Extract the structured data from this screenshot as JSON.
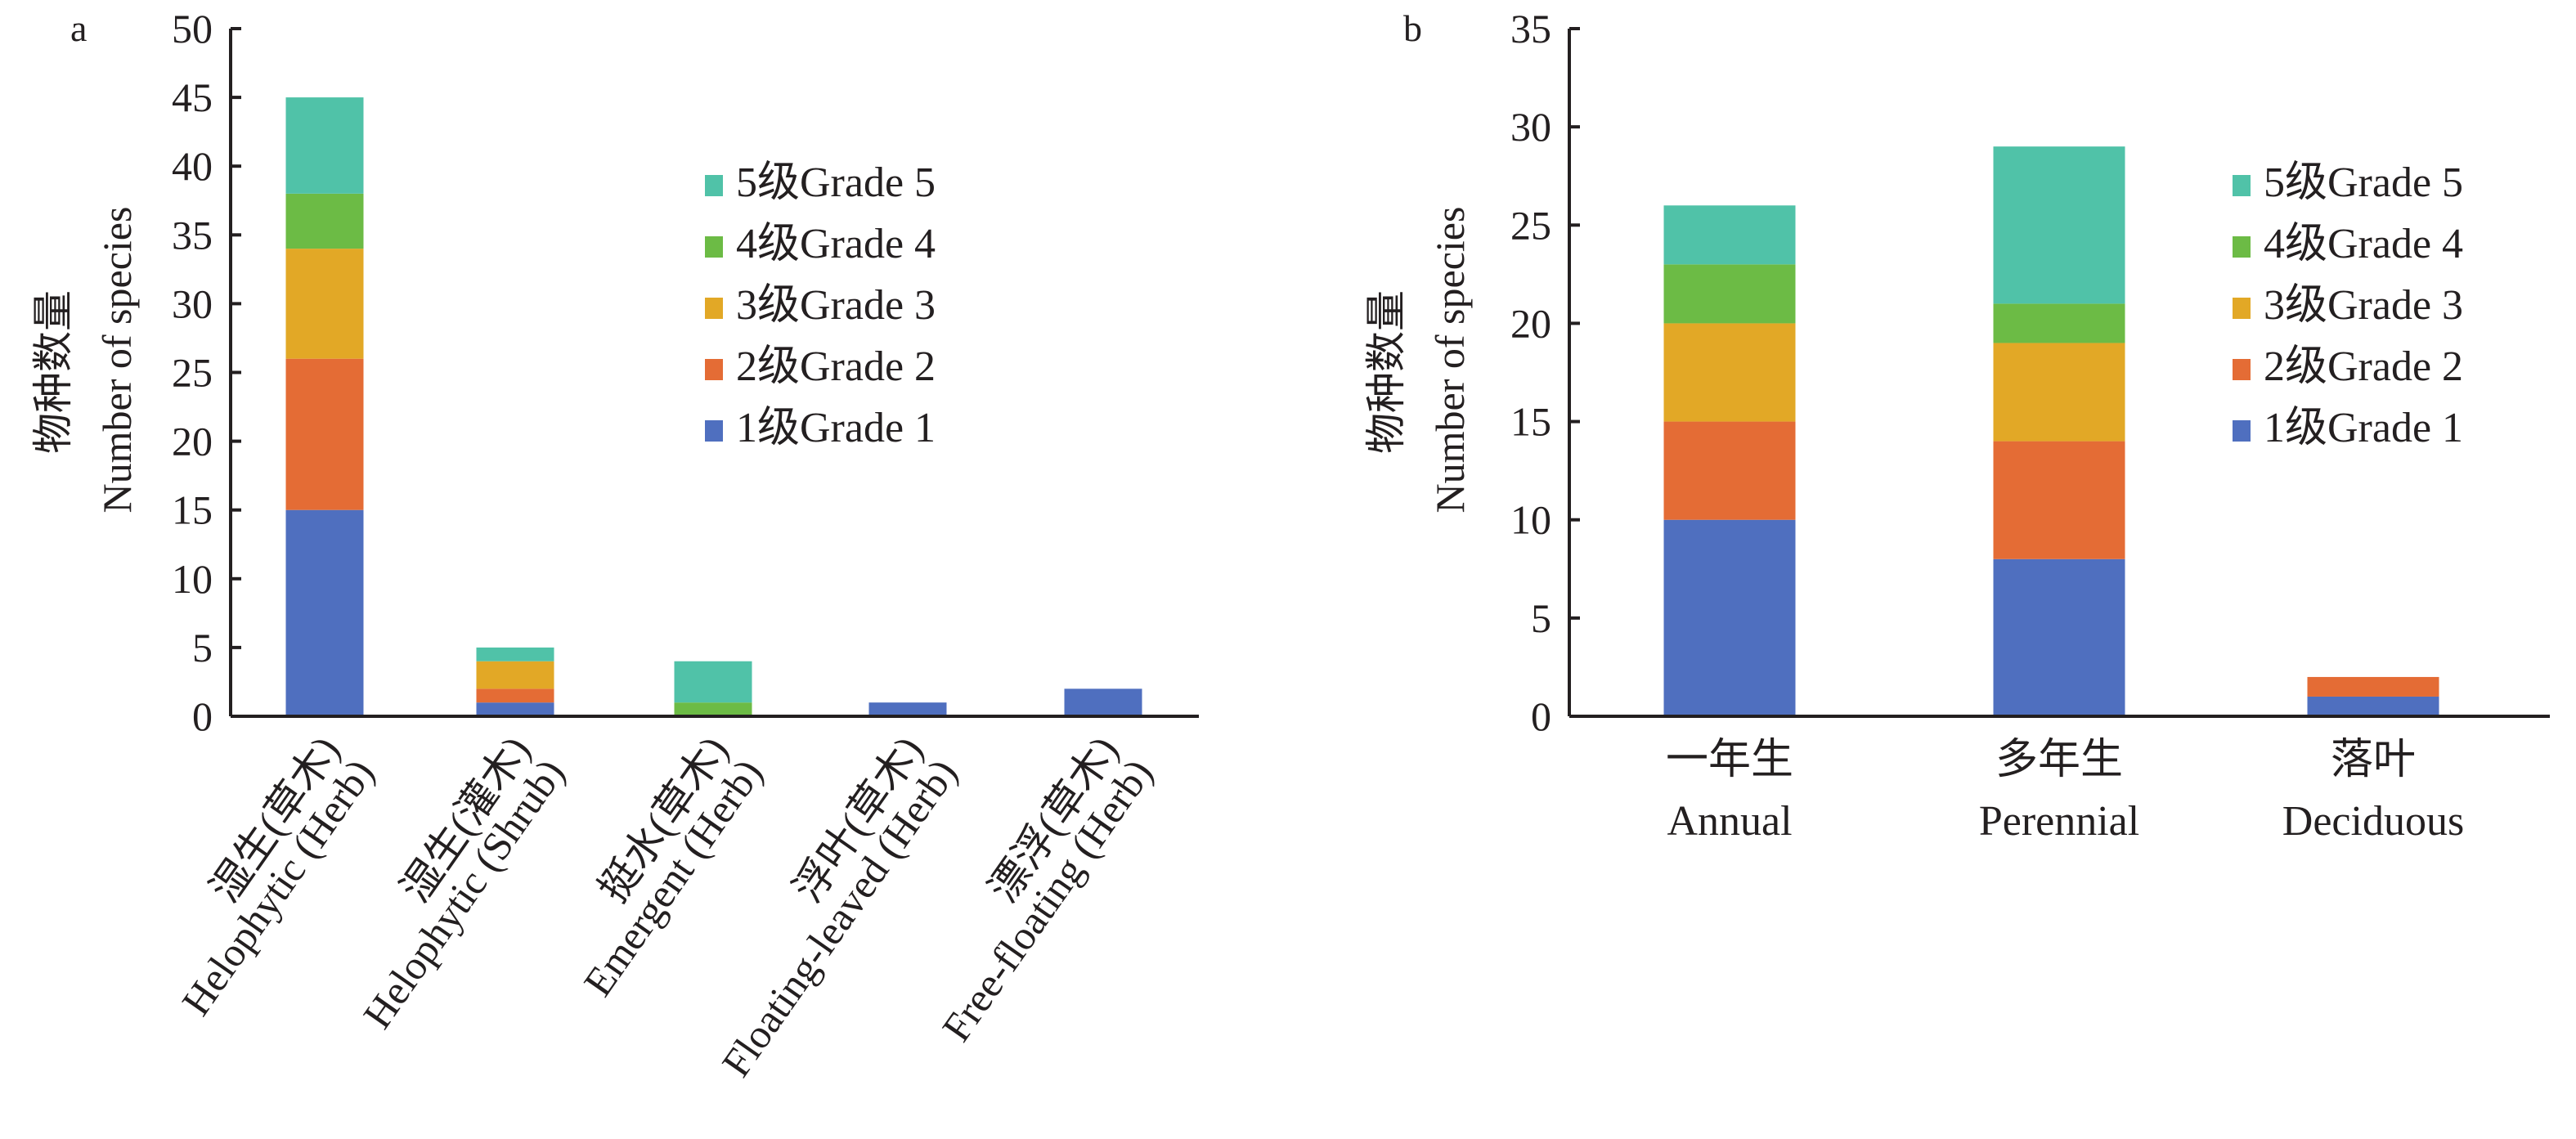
{
  "chart_data": [
    {
      "type": "bar",
      "stacked": true,
      "panel_label": "a",
      "ylabel_cn": "物种数量",
      "ylabel_en": "Number of species",
      "xlabel": "",
      "ylim": [
        0,
        50
      ],
      "yticks": [
        0,
        5,
        10,
        15,
        20,
        25,
        30,
        35,
        40,
        45,
        50
      ],
      "categories": [
        {
          "cn": "湿生(草木)",
          "en": "Helophytic (Herb)"
        },
        {
          "cn": "湿生(灌木)",
          "en": "Helophytic (Shrub)"
        },
        {
          "cn": "挺水(草木)",
          "en": "Emergent (Herb)"
        },
        {
          "cn": "浮叶(草木)",
          "en": "Floating-leaved (Herb)"
        },
        {
          "cn": "漂浮(草木)",
          "en": "Free-floating (Herb)"
        }
      ],
      "series": [
        {
          "name": "1级Grade 1",
          "color": "#4f6fbf",
          "values": [
            15,
            1,
            0,
            1,
            2
          ]
        },
        {
          "name": "2级Grade 2",
          "color": "#e46c35",
          "values": [
            11,
            1,
            0,
            0,
            0
          ]
        },
        {
          "name": "3级Grade 3",
          "color": "#e2a826",
          "values": [
            8,
            2,
            0,
            0,
            0
          ]
        },
        {
          "name": "4级Grade 4",
          "color": "#6cbb45",
          "values": [
            4,
            0,
            1,
            0,
            0
          ]
        },
        {
          "name": "5级Grade 5",
          "color": "#50c2a8",
          "values": [
            7,
            1,
            3,
            0,
            0
          ]
        }
      ],
      "legend_position": "top-right"
    },
    {
      "type": "bar",
      "stacked": true,
      "panel_label": "b",
      "ylabel_cn": "物种数量",
      "ylabel_en": "Number of species",
      "xlabel": "",
      "ylim": [
        0,
        35
      ],
      "yticks": [
        0,
        5,
        10,
        15,
        20,
        25,
        30,
        35
      ],
      "categories": [
        {
          "cn": "一年生",
          "en": "Annual"
        },
        {
          "cn": "多年生",
          "en": "Perennial"
        },
        {
          "cn": "落叶",
          "en": "Deciduous"
        }
      ],
      "series": [
        {
          "name": "1级Grade 1",
          "color": "#4f6fbf",
          "values": [
            10,
            8,
            1
          ]
        },
        {
          "name": "2级Grade 2",
          "color": "#e46c35",
          "values": [
            5,
            6,
            1
          ]
        },
        {
          "name": "3级Grade 3",
          "color": "#e2a826",
          "values": [
            5,
            5,
            0
          ]
        },
        {
          "name": "4级Grade 4",
          "color": "#6cbb45",
          "values": [
            3,
            2,
            0
          ]
        },
        {
          "name": "5级Grade 5",
          "color": "#50c2a8",
          "values": [
            3,
            8,
            0
          ]
        }
      ],
      "legend_position": "top-right"
    }
  ]
}
